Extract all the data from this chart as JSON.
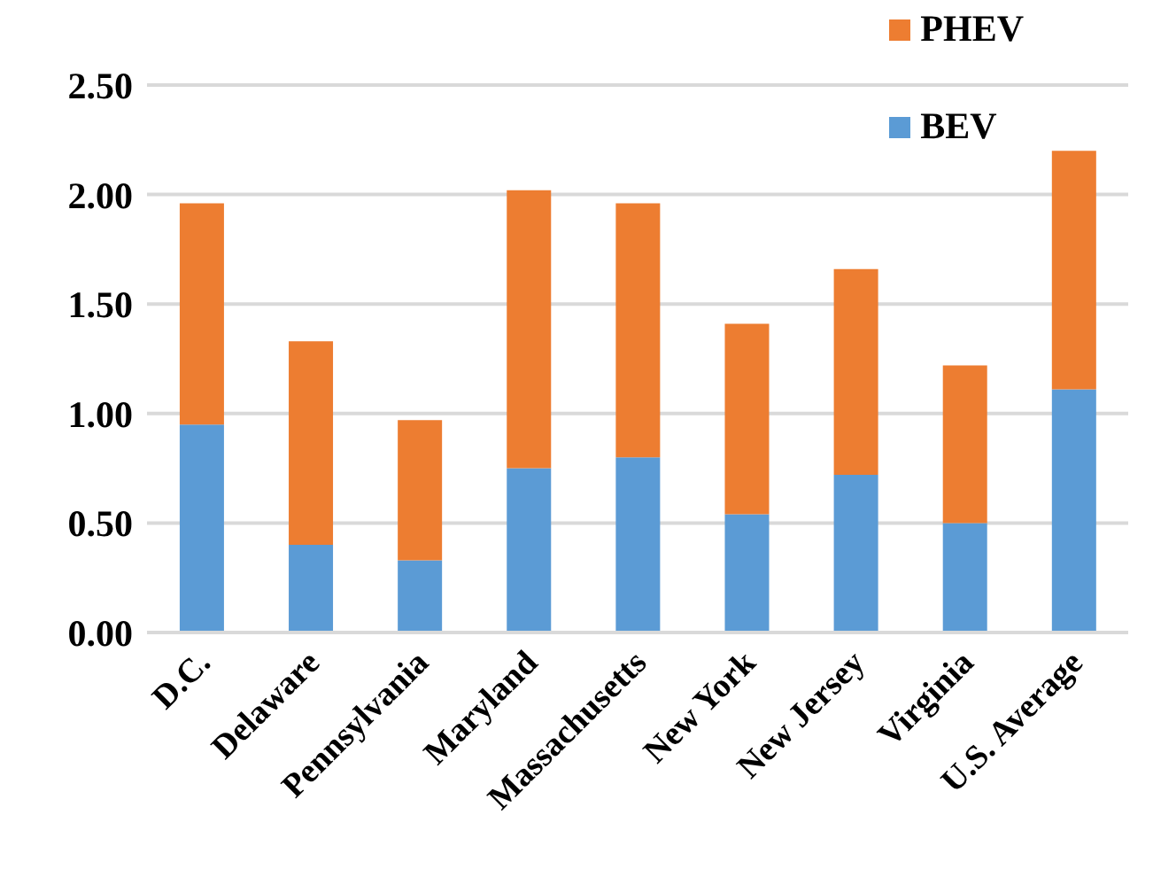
{
  "chart_data": {
    "type": "bar",
    "stacked": true,
    "categories": [
      "D.C.",
      "Delaware",
      "Pennsylvania",
      "Maryland",
      "Massachusetts",
      "New York",
      "New Jersey",
      "Virginia",
      "U.S. Average"
    ],
    "series": [
      {
        "name": "BEV",
        "color": "#5b9bd5",
        "values": [
          0.95,
          0.4,
          0.33,
          0.75,
          0.8,
          0.54,
          0.72,
          0.5,
          1.11
        ]
      },
      {
        "name": "PHEV",
        "color": "#ed7d31",
        "values": [
          1.01,
          0.93,
          0.64,
          1.27,
          1.16,
          0.87,
          0.94,
          0.72,
          1.09
        ]
      }
    ],
    "ylim": [
      0,
      2.5
    ],
    "yticks": [
      {
        "value": 0,
        "label": "0.00"
      },
      {
        "value": 0.5,
        "label": "0.50"
      },
      {
        "value": 1,
        "label": "1.00"
      },
      {
        "value": 1.5,
        "label": "1.50"
      },
      {
        "value": 2,
        "label": "2.00"
      },
      {
        "value": 2.5,
        "label": "2.50"
      }
    ],
    "grid": "y",
    "legend": "top right"
  }
}
